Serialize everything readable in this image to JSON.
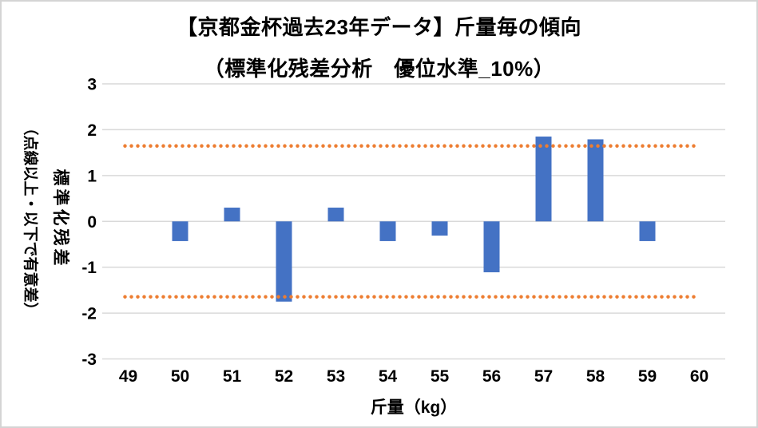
{
  "title": {
    "line1": "【京都金杯過去23年データ】斤量毎の傾向",
    "line2": "（標準化残差分析　優位水準_10%）"
  },
  "chart_data": {
    "type": "bar",
    "categories": [
      49,
      50,
      51,
      52,
      53,
      54,
      55,
      56,
      57,
      58,
      59,
      60
    ],
    "values": [
      null,
      -0.43,
      0.3,
      -1.75,
      0.3,
      -0.43,
      -0.31,
      -1.11,
      1.85,
      1.79,
      -0.43,
      null
    ],
    "significance_lines": [
      1.645,
      -1.645
    ],
    "xlabel": "斤量（kg）",
    "ylabel_main": "標準化残差",
    "ylabel_sub": "（点線以上・以下で有意差）",
    "ylim": [
      -3,
      3
    ],
    "ytick_step": 1,
    "yticks": [
      "3",
      "2",
      "1",
      "0",
      "-1",
      "-2",
      "-3"
    ],
    "grid": true,
    "legend": "none",
    "bar_color": "#4472C4",
    "sig_line_color": "#ED7D31",
    "grid_color": "#D9D9D9",
    "text_color": "#000000"
  }
}
